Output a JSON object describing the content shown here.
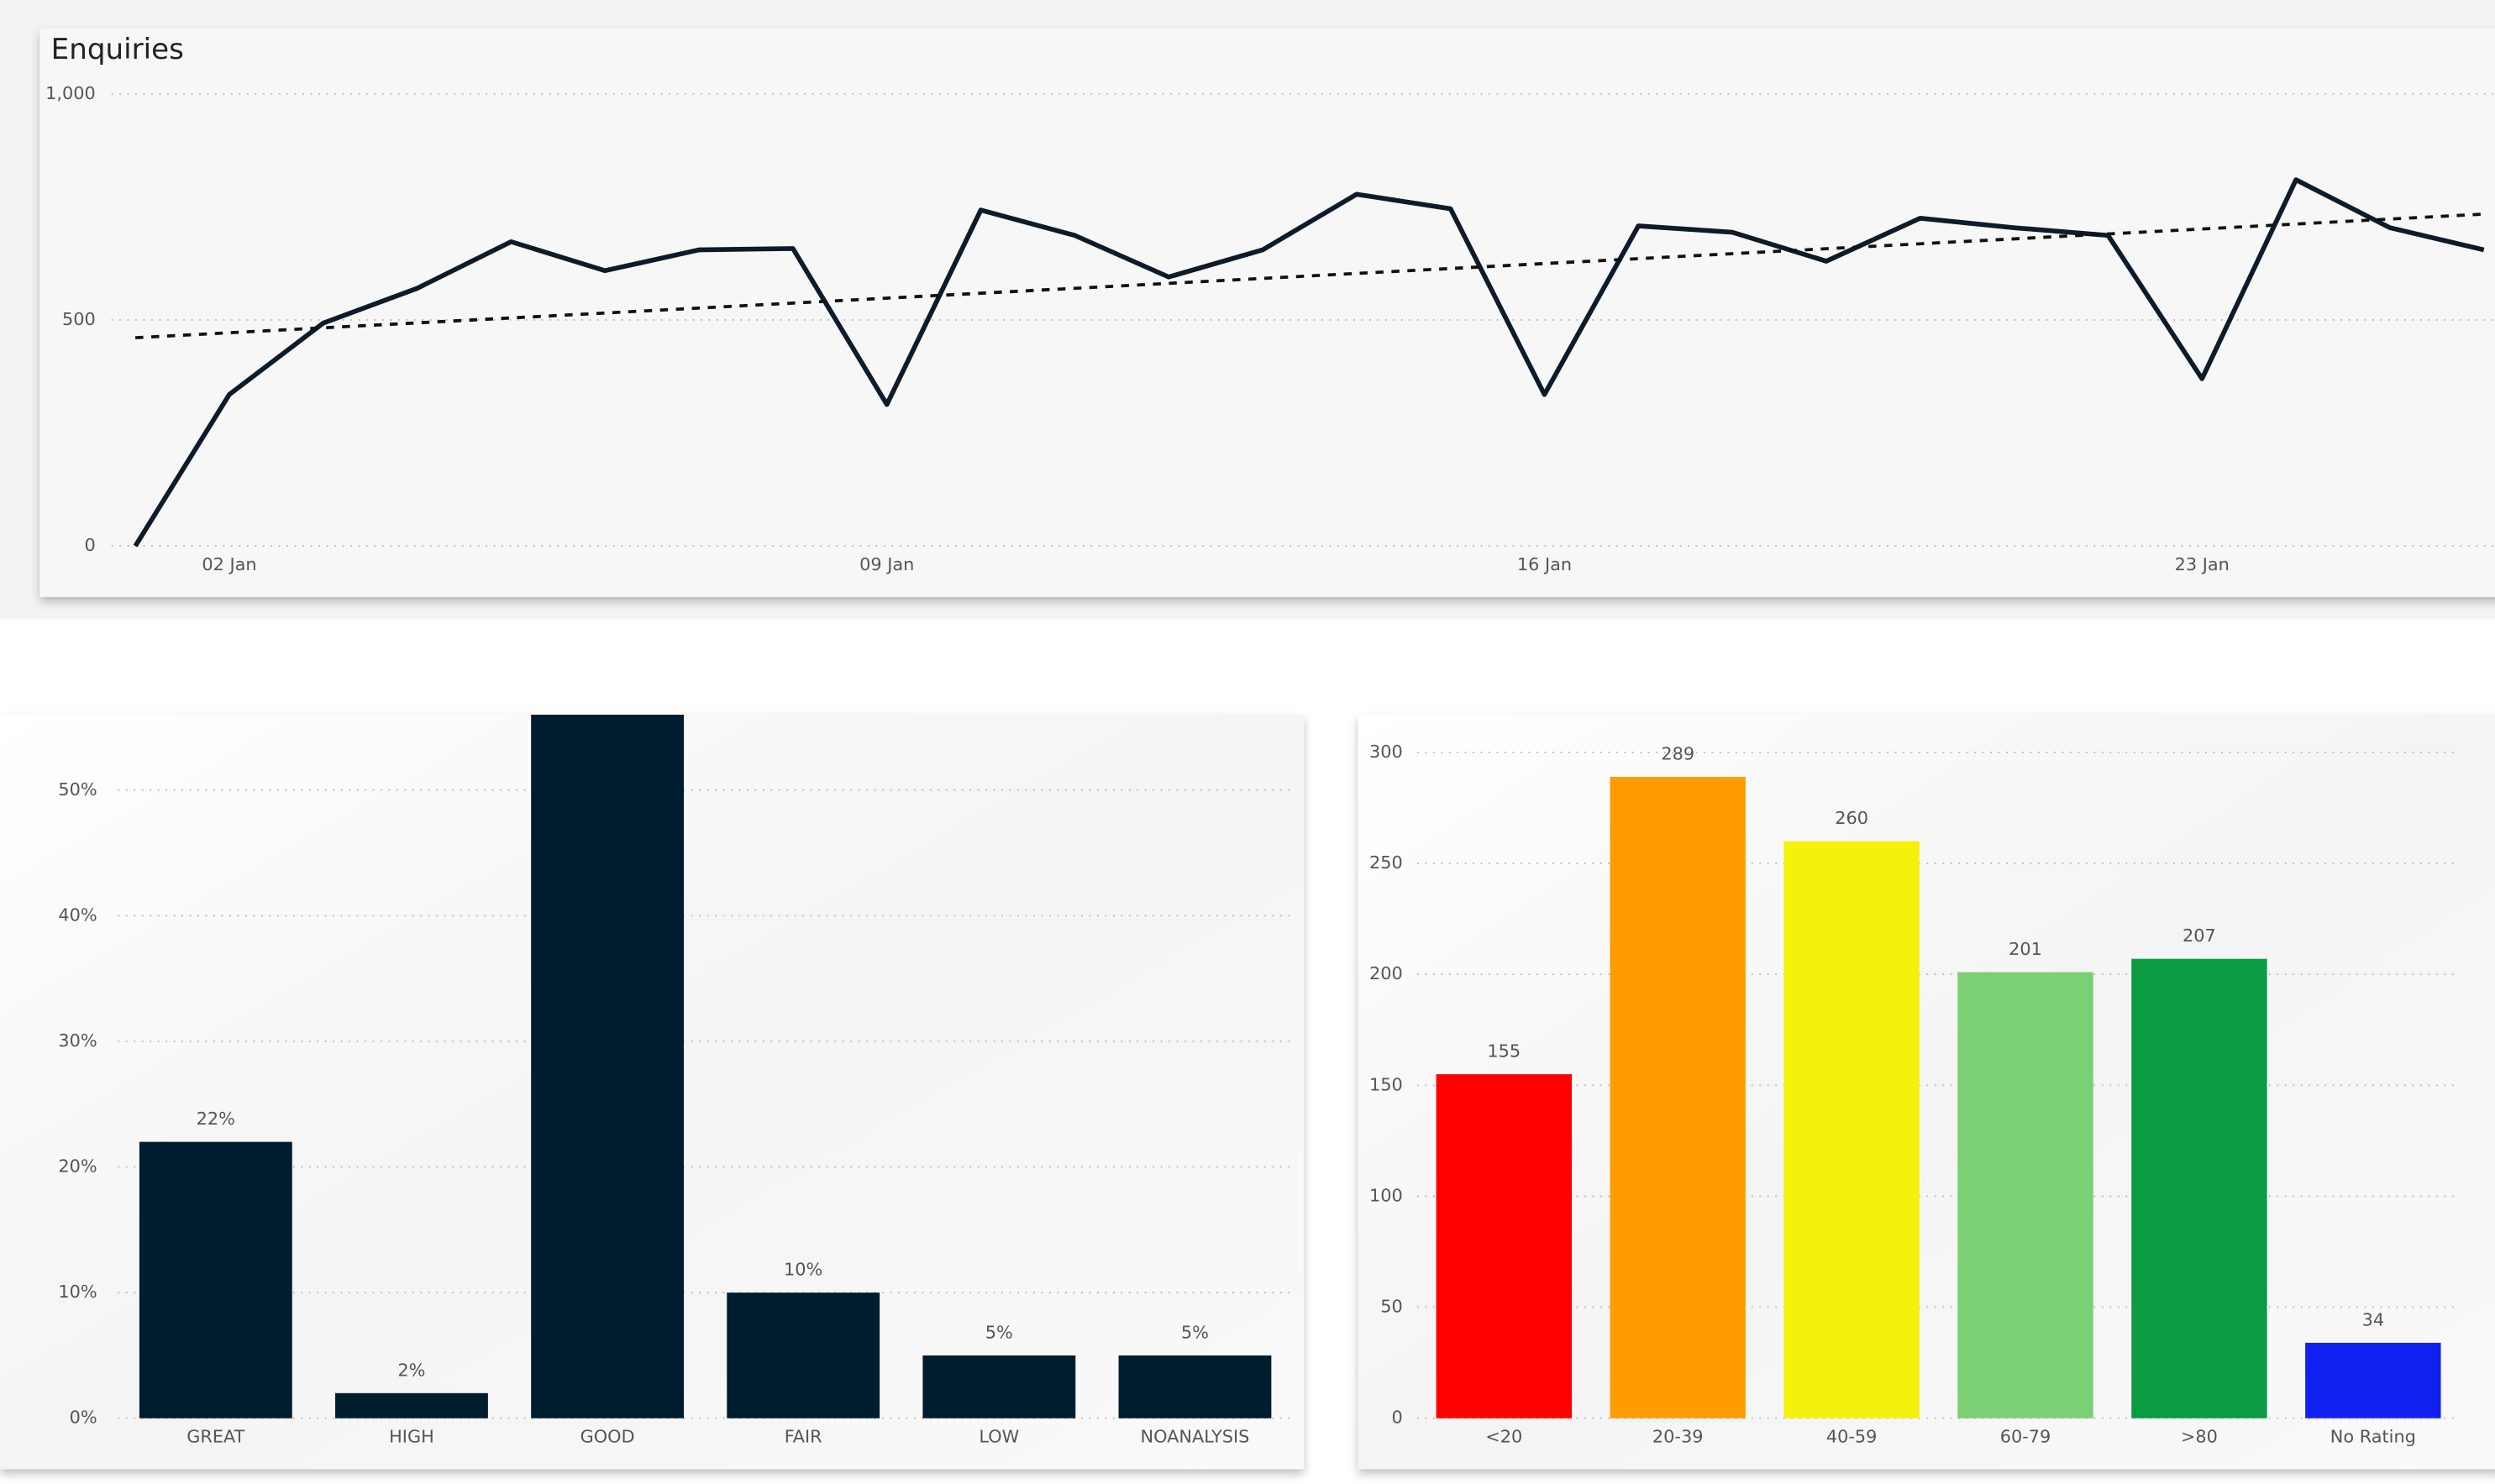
{
  "chart_data": [
    {
      "type": "line",
      "title": "Enquiries",
      "x": [
        "01 Jan",
        "02 Jan",
        "03 Jan",
        "04 Jan",
        "05 Jan",
        "06 Jan",
        "07 Jan",
        "08 Jan",
        "09 Jan",
        "10 Jan",
        "11 Jan",
        "12 Jan",
        "13 Jan",
        "14 Jan",
        "15 Jan",
        "16 Jan",
        "17 Jan",
        "18 Jan",
        "19 Jan",
        "20 Jan",
        "21 Jan",
        "22 Jan",
        "23 Jan",
        "24 Jan",
        "25 Jan",
        "26 Jan"
      ],
      "series": [
        {
          "color": "#0d1b2a",
          "values": [
            0,
            335,
            493,
            570,
            673,
            609,
            655,
            658,
            313,
            743,
            687,
            595,
            655,
            778,
            746,
            335,
            708,
            694,
            630,
            725,
            704,
            687,
            370,
            810,
            704,
            655
          ]
        }
      ],
      "xticks": [
        "02 Jan",
        "09 Jan",
        "16 Jan",
        "23 Jan"
      ],
      "ylim": [
        0,
        1000
      ],
      "yticks": [
        0,
        500,
        {
          "value": 1000,
          "label": "1,000"
        }
      ],
      "grid": true,
      "trend_line": true
    },
    {
      "type": "bar",
      "categories": [
        "GREAT",
        "HIGH",
        "GOOD",
        "FAIR",
        "LOW",
        "NOANALYSIS"
      ],
      "values": [
        22,
        2,
        56,
        10,
        5,
        5
      ],
      "value_labels": [
        "22%",
        "2%",
        null,
        "10%",
        "5%",
        "5%"
      ],
      "color": "#001c2f",
      "ylim": [
        0,
        56
      ],
      "yticks": [
        {
          "value": 0,
          "label": "0%"
        },
        {
          "value": 10,
          "label": "10%"
        },
        {
          "value": 20,
          "label": "20%"
        },
        {
          "value": 30,
          "label": "30%"
        },
        {
          "value": 40,
          "label": "40%"
        },
        {
          "value": 50,
          "label": "50%"
        }
      ],
      "grid": true
    },
    {
      "type": "bar",
      "categories": [
        "<20",
        "20-39",
        "40-59",
        "60-79",
        ">80",
        "No Rating"
      ],
      "values": [
        155,
        289,
        260,
        201,
        207,
        34
      ],
      "colors": [
        "#ff0000",
        "#ff9c00",
        "#f5f00c",
        "#7ad072",
        "#0a9b43",
        "#1020ee"
      ],
      "ylim": [
        0,
        317
      ],
      "yticks": [
        0,
        50,
        100,
        150,
        200,
        250,
        300
      ],
      "grid": true
    }
  ]
}
